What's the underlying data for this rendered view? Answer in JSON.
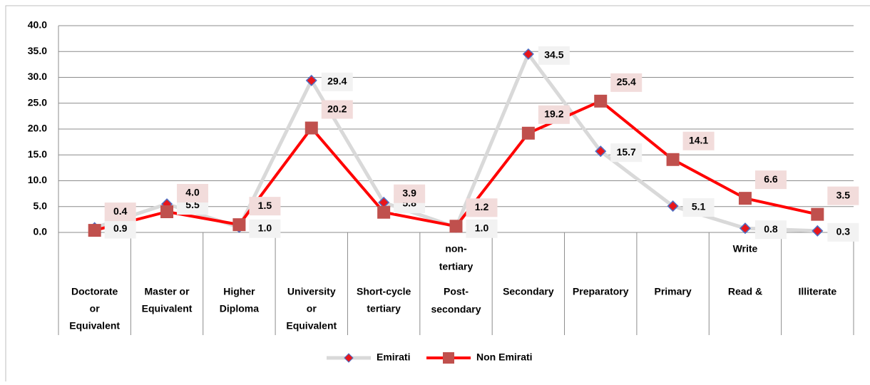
{
  "chart_data": {
    "type": "line",
    "categories": [
      [
        "Doctorate",
        "or",
        "Equivalent"
      ],
      [
        "Master or",
        "Equivalent"
      ],
      [
        "Higher",
        "Diploma"
      ],
      [
        "University",
        "or",
        "Equivalent"
      ],
      [
        "Short-cycle",
        "tertiary"
      ],
      [
        "non-",
        "tertiary",
        "Post-",
        "secondary"
      ],
      [
        "Secondary"
      ],
      [
        "Preparatory"
      ],
      [
        "Primary"
      ],
      [
        "Write",
        "Read &"
      ],
      [
        "Illiterate"
      ]
    ],
    "series": [
      {
        "name": "Emirati",
        "color": "#d9d9d9",
        "marker_color": "#e8161b",
        "marker_edge": "#4f6fc4",
        "values": [
          0.9,
          5.5,
          1.0,
          29.4,
          5.8,
          1.0,
          34.5,
          15.7,
          5.1,
          0.8,
          0.3
        ],
        "value_labels": [
          "0.9",
          "5.5",
          "1.0",
          "29.4",
          "5.8",
          "1.0",
          "34.5",
          "15.7",
          "5.1",
          "0.8",
          "0.3"
        ]
      },
      {
        "name": "Non Emirati",
        "color": "#ff0000",
        "marker_color": "#c0504d",
        "marker_edge": "#c0504d",
        "values": [
          0.4,
          4.0,
          1.5,
          20.2,
          3.9,
          1.2,
          19.2,
          25.4,
          14.1,
          6.6,
          3.5
        ],
        "value_labels": [
          "0.4",
          "4.0",
          "1.5",
          "20.2",
          "3.9",
          "1.2",
          "19.2",
          "25.4",
          "14.1",
          "6.6",
          "3.5"
        ]
      }
    ],
    "ylim": [
      0,
      40
    ],
    "yticks": [
      {
        "value": 0,
        "label": "0.0"
      },
      {
        "value": 5,
        "label": "5.0"
      },
      {
        "value": 10,
        "label": "10.0"
      },
      {
        "value": 15,
        "label": "15.0"
      },
      {
        "value": 20,
        "label": "20.0"
      },
      {
        "value": 25,
        "label": "25.0"
      },
      {
        "value": 30,
        "label": "30.0"
      },
      {
        "value": 35,
        "label": "35.0"
      },
      {
        "value": 40,
        "label": "40.0"
      }
    ],
    "grid": true,
    "legend": "bottom"
  }
}
